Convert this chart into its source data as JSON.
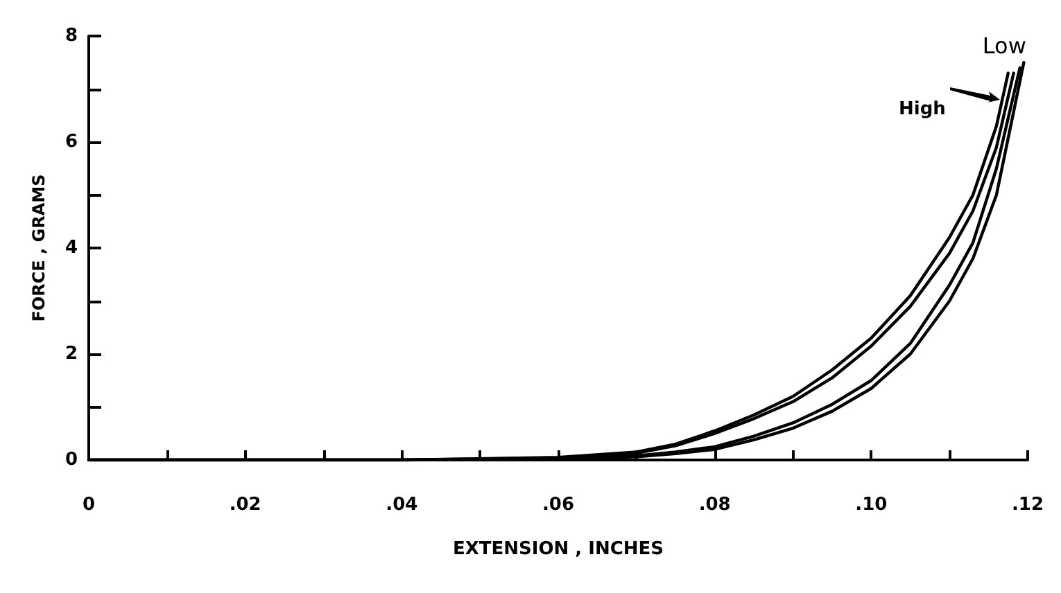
{
  "chart_data": {
    "type": "line",
    "xlabel": "EXTENSION , INCHES",
    "ylabel": "FORCE , GRAMS",
    "xlim": [
      0,
      0.12
    ],
    "ylim": [
      0,
      8
    ],
    "xticks": [
      0,
      {
        "value": 0.01,
        "label": null
      },
      {
        "value": 0.02,
        "label": ".02"
      },
      {
        "value": 0.03,
        "label": null
      },
      {
        "value": 0.04,
        "label": ".04"
      },
      {
        "value": 0.05,
        "label": null
      },
      {
        "value": 0.06,
        "label": ".06"
      },
      {
        "value": 0.07,
        "label": null
      },
      {
        "value": 0.08,
        "label": ".08"
      },
      {
        "value": 0.09,
        "label": null
      },
      {
        "value": 0.1,
        "label": ".10"
      },
      {
        "value": 0.11,
        "label": null
      },
      {
        "value": 0.12,
        "label": ".12"
      }
    ],
    "yticks": [
      0,
      {
        "value": 1,
        "label": null
      },
      2,
      {
        "value": 3,
        "label": null
      },
      4,
      {
        "value": 5,
        "label": null
      },
      6,
      {
        "value": 7,
        "label": null
      },
      8
    ],
    "grid": false,
    "legend": false,
    "marker": "none",
    "line_style": "solid",
    "x": [
      0,
      0.04,
      0.06,
      0.07,
      0.075,
      0.08,
      0.085,
      0.09,
      0.095,
      0.1,
      0.105,
      0.11,
      0.113,
      0.116,
      0.1175
    ],
    "series": [
      {
        "name": "High",
        "color": "#000000",
        "values": [
          0,
          0,
          0.05,
          0.15,
          0.3,
          0.55,
          0.85,
          1.2,
          1.7,
          2.3,
          3.1,
          4.2,
          5,
          6.3,
          7.3
        ]
      },
      {
        "color": "#000000",
        "x": [
          0,
          0.04,
          0.06,
          0.07,
          0.075,
          0.08,
          0.085,
          0.09,
          0.095,
          0.1,
          0.105,
          0.11,
          0.113,
          0.116,
          0.1182
        ],
        "values": [
          0,
          0,
          0.04,
          0.13,
          0.27,
          0.5,
          0.78,
          1.1,
          1.55,
          2.15,
          2.9,
          3.9,
          4.7,
          5.9,
          7.3
        ]
      },
      {
        "color": "#000000",
        "x": [
          0,
          0.04,
          0.06,
          0.07,
          0.075,
          0.08,
          0.085,
          0.09,
          0.095,
          0.1,
          0.105,
          0.11,
          0.113,
          0.116,
          0.119
        ],
        "values": [
          0,
          0,
          0.02,
          0.08,
          0.15,
          0.25,
          0.45,
          0.7,
          1.05,
          1.5,
          2.2,
          3.3,
          4.1,
          5.5,
          7.4
        ]
      },
      {
        "name": "Low",
        "color": "#000000",
        "x": [
          0,
          0.04,
          0.06,
          0.07,
          0.075,
          0.08,
          0.085,
          0.09,
          0.095,
          0.1,
          0.105,
          0.11,
          0.113,
          0.116,
          0.1195
        ],
        "values": [
          0,
          0,
          0.02,
          0.06,
          0.12,
          0.2,
          0.38,
          0.6,
          0.92,
          1.35,
          2,
          3,
          3.8,
          5,
          7.5
        ]
      }
    ]
  }
}
